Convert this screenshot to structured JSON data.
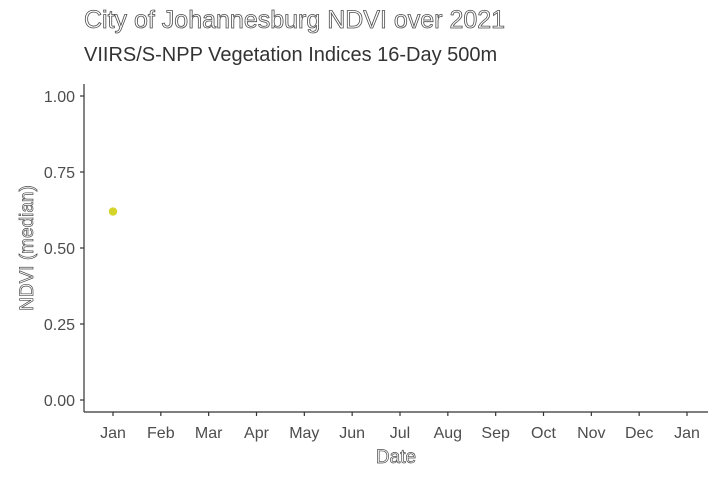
{
  "title": "City of Johannesburg NDVI over 2021",
  "subtitle": "VIIRS/S-NPP Vegetation Indices 16-Day 500m",
  "chart_data": {
    "type": "scatter",
    "title": "City of Johannesburg NDVI over 2021",
    "subtitle": "VIIRS/S-NPP Vegetation Indices 16-Day 500m",
    "xlabel": "Date",
    "ylabel": "NDVI (median)",
    "x_ticks": [
      "Jan",
      "Feb",
      "Mar",
      "Apr",
      "May",
      "Jun",
      "Jul",
      "Aug",
      "Sep",
      "Oct",
      "Nov",
      "Dec",
      "Jan"
    ],
    "x_range": [
      "2021-01-01",
      "2022-01-01"
    ],
    "y_ticks": [
      "0.00",
      "0.25",
      "0.50",
      "0.75",
      "1.00"
    ],
    "ylim": [
      0,
      1
    ],
    "grid": false,
    "legend": "none",
    "point_color": "#d4d42a",
    "points": [
      {
        "x": "2021-01-01",
        "y": 0.62
      }
    ]
  }
}
